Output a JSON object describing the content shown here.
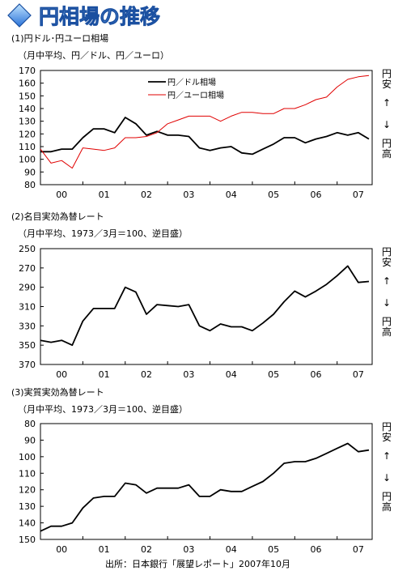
{
  "title": "円相場の推移",
  "sections": [
    {
      "heading": "(1)円ドル･円ユーロ相場",
      "note": "（月中平均、円／ドル、円／ユーロ）"
    },
    {
      "heading": "(2)名目実効為替レート",
      "note": "（月中平均、1973／3月＝100、逆目盛）"
    },
    {
      "heading": "(3)実質実効為替レート",
      "note": "（月中平均、1973／3月＝100、逆目盛）"
    }
  ],
  "side_labels": {
    "top": "円安",
    "bottom": "円高",
    "up_arrow": "↑",
    "down_arrow": "↓"
  },
  "source": "出所：日本銀行「展望レポート」2007年10月",
  "colors": {
    "usd": "#000000",
    "eur": "#e00000",
    "axis": "#000000"
  },
  "chart_data": [
    {
      "type": "line",
      "x_categories": [
        "00",
        "01",
        "02",
        "03",
        "04",
        "05",
        "06",
        "07"
      ],
      "x_range": [
        2000.0,
        2007.75
      ],
      "ylim": [
        80,
        170
      ],
      "y_ticks": [
        80,
        90,
        100,
        110,
        120,
        130,
        140,
        150,
        160,
        170
      ],
      "inverted": false,
      "series": [
        {
          "name": "円／ドル相場",
          "color": "#000000",
          "width": 1.8,
          "points": [
            [
              2000.0,
              106
            ],
            [
              2000.25,
              106
            ],
            [
              2000.5,
              108
            ],
            [
              2000.75,
              108
            ],
            [
              2001.0,
              117
            ],
            [
              2001.25,
              124
            ],
            [
              2001.5,
              124
            ],
            [
              2001.75,
              121
            ],
            [
              2002.0,
              133
            ],
            [
              2002.25,
              128
            ],
            [
              2002.5,
              119
            ],
            [
              2002.75,
              122
            ],
            [
              2003.0,
              119
            ],
            [
              2003.25,
              119
            ],
            [
              2003.5,
              118
            ],
            [
              2003.75,
              109
            ],
            [
              2004.0,
              107
            ],
            [
              2004.25,
              109
            ],
            [
              2004.5,
              110
            ],
            [
              2004.75,
              105
            ],
            [
              2005.0,
              104
            ],
            [
              2005.25,
              108
            ],
            [
              2005.5,
              112
            ],
            [
              2005.75,
              117
            ],
            [
              2006.0,
              117
            ],
            [
              2006.25,
              113
            ],
            [
              2006.5,
              116
            ],
            [
              2006.75,
              118
            ],
            [
              2007.0,
              121
            ],
            [
              2007.25,
              119
            ],
            [
              2007.5,
              121
            ],
            [
              2007.75,
              116
            ]
          ]
        },
        {
          "name": "円／ユーロ相場",
          "color": "#e00000",
          "width": 1.0,
          "points": [
            [
              2000.0,
              108
            ],
            [
              2000.25,
              97
            ],
            [
              2000.5,
              99
            ],
            [
              2000.75,
              93
            ],
            [
              2001.0,
              109
            ],
            [
              2001.25,
              108
            ],
            [
              2001.5,
              107
            ],
            [
              2001.75,
              109
            ],
            [
              2002.0,
              117
            ],
            [
              2002.25,
              117
            ],
            [
              2002.5,
              118
            ],
            [
              2002.75,
              121
            ],
            [
              2003.0,
              128
            ],
            [
              2003.25,
              131
            ],
            [
              2003.5,
              134
            ],
            [
              2003.75,
              134
            ],
            [
              2004.0,
              134
            ],
            [
              2004.25,
              130
            ],
            [
              2004.5,
              134
            ],
            [
              2004.75,
              137
            ],
            [
              2005.0,
              137
            ],
            [
              2005.25,
              136
            ],
            [
              2005.5,
              136
            ],
            [
              2005.75,
              140
            ],
            [
              2006.0,
              140
            ],
            [
              2006.25,
              143
            ],
            [
              2006.5,
              147
            ],
            [
              2006.75,
              149
            ],
            [
              2007.0,
              157
            ],
            [
              2007.25,
              163
            ],
            [
              2007.5,
              165
            ],
            [
              2007.75,
              166
            ]
          ]
        }
      ]
    },
    {
      "type": "line",
      "x_categories": [
        "00",
        "01",
        "02",
        "03",
        "04",
        "05",
        "06",
        "07"
      ],
      "x_range": [
        2000.0,
        2007.75
      ],
      "ylim": [
        250,
        370
      ],
      "y_ticks": [
        250,
        270,
        290,
        310,
        330,
        350,
        370
      ],
      "inverted": true,
      "series": [
        {
          "name": "",
          "color": "#000000",
          "width": 1.8,
          "points": [
            [
              2000.0,
              345
            ],
            [
              2000.25,
              347
            ],
            [
              2000.5,
              345
            ],
            [
              2000.75,
              350
            ],
            [
              2001.0,
              325
            ],
            [
              2001.25,
              312
            ],
            [
              2001.5,
              312
            ],
            [
              2001.75,
              312
            ],
            [
              2002.0,
              290
            ],
            [
              2002.25,
              295
            ],
            [
              2002.5,
              318
            ],
            [
              2002.75,
              308
            ],
            [
              2003.0,
              309
            ],
            [
              2003.25,
              310
            ],
            [
              2003.5,
              308
            ],
            [
              2003.75,
              330
            ],
            [
              2004.0,
              335
            ],
            [
              2004.25,
              328
            ],
            [
              2004.5,
              331
            ],
            [
              2004.75,
              331
            ],
            [
              2005.0,
              335
            ],
            [
              2005.25,
              327
            ],
            [
              2005.5,
              318
            ],
            [
              2005.75,
              305
            ],
            [
              2006.0,
              294
            ],
            [
              2006.25,
              300
            ],
            [
              2006.5,
              294
            ],
            [
              2006.75,
              287
            ],
            [
              2007.0,
              278
            ],
            [
              2007.25,
              268
            ],
            [
              2007.5,
              285
            ],
            [
              2007.75,
              284
            ]
          ]
        }
      ]
    },
    {
      "type": "line",
      "x_categories": [
        "00",
        "01",
        "02",
        "03",
        "04",
        "05",
        "06",
        "07"
      ],
      "x_range": [
        2000.0,
        2007.75
      ],
      "ylim": [
        80,
        150
      ],
      "y_ticks": [
        80,
        90,
        100,
        110,
        120,
        130,
        140,
        150
      ],
      "inverted": true,
      "series": [
        {
          "name": "",
          "color": "#000000",
          "width": 1.8,
          "points": [
            [
              2000.0,
              145
            ],
            [
              2000.25,
              142
            ],
            [
              2000.5,
              142
            ],
            [
              2000.75,
              140
            ],
            [
              2001.0,
              131
            ],
            [
              2001.25,
              125
            ],
            [
              2001.5,
              124
            ],
            [
              2001.75,
              124
            ],
            [
              2002.0,
              116
            ],
            [
              2002.25,
              117
            ],
            [
              2002.5,
              122
            ],
            [
              2002.75,
              119
            ],
            [
              2003.0,
              119
            ],
            [
              2003.25,
              119
            ],
            [
              2003.5,
              117
            ],
            [
              2003.75,
              124
            ],
            [
              2004.0,
              124
            ],
            [
              2004.25,
              120
            ],
            [
              2004.5,
              121
            ],
            [
              2004.75,
              121
            ],
            [
              2005.0,
              118
            ],
            [
              2005.25,
              115
            ],
            [
              2005.5,
              110
            ],
            [
              2005.75,
              104
            ],
            [
              2006.0,
              103
            ],
            [
              2006.25,
              103
            ],
            [
              2006.5,
              101
            ],
            [
              2006.75,
              98
            ],
            [
              2007.0,
              95
            ],
            [
              2007.25,
              92
            ],
            [
              2007.5,
              97
            ],
            [
              2007.75,
              96
            ]
          ]
        }
      ]
    }
  ]
}
